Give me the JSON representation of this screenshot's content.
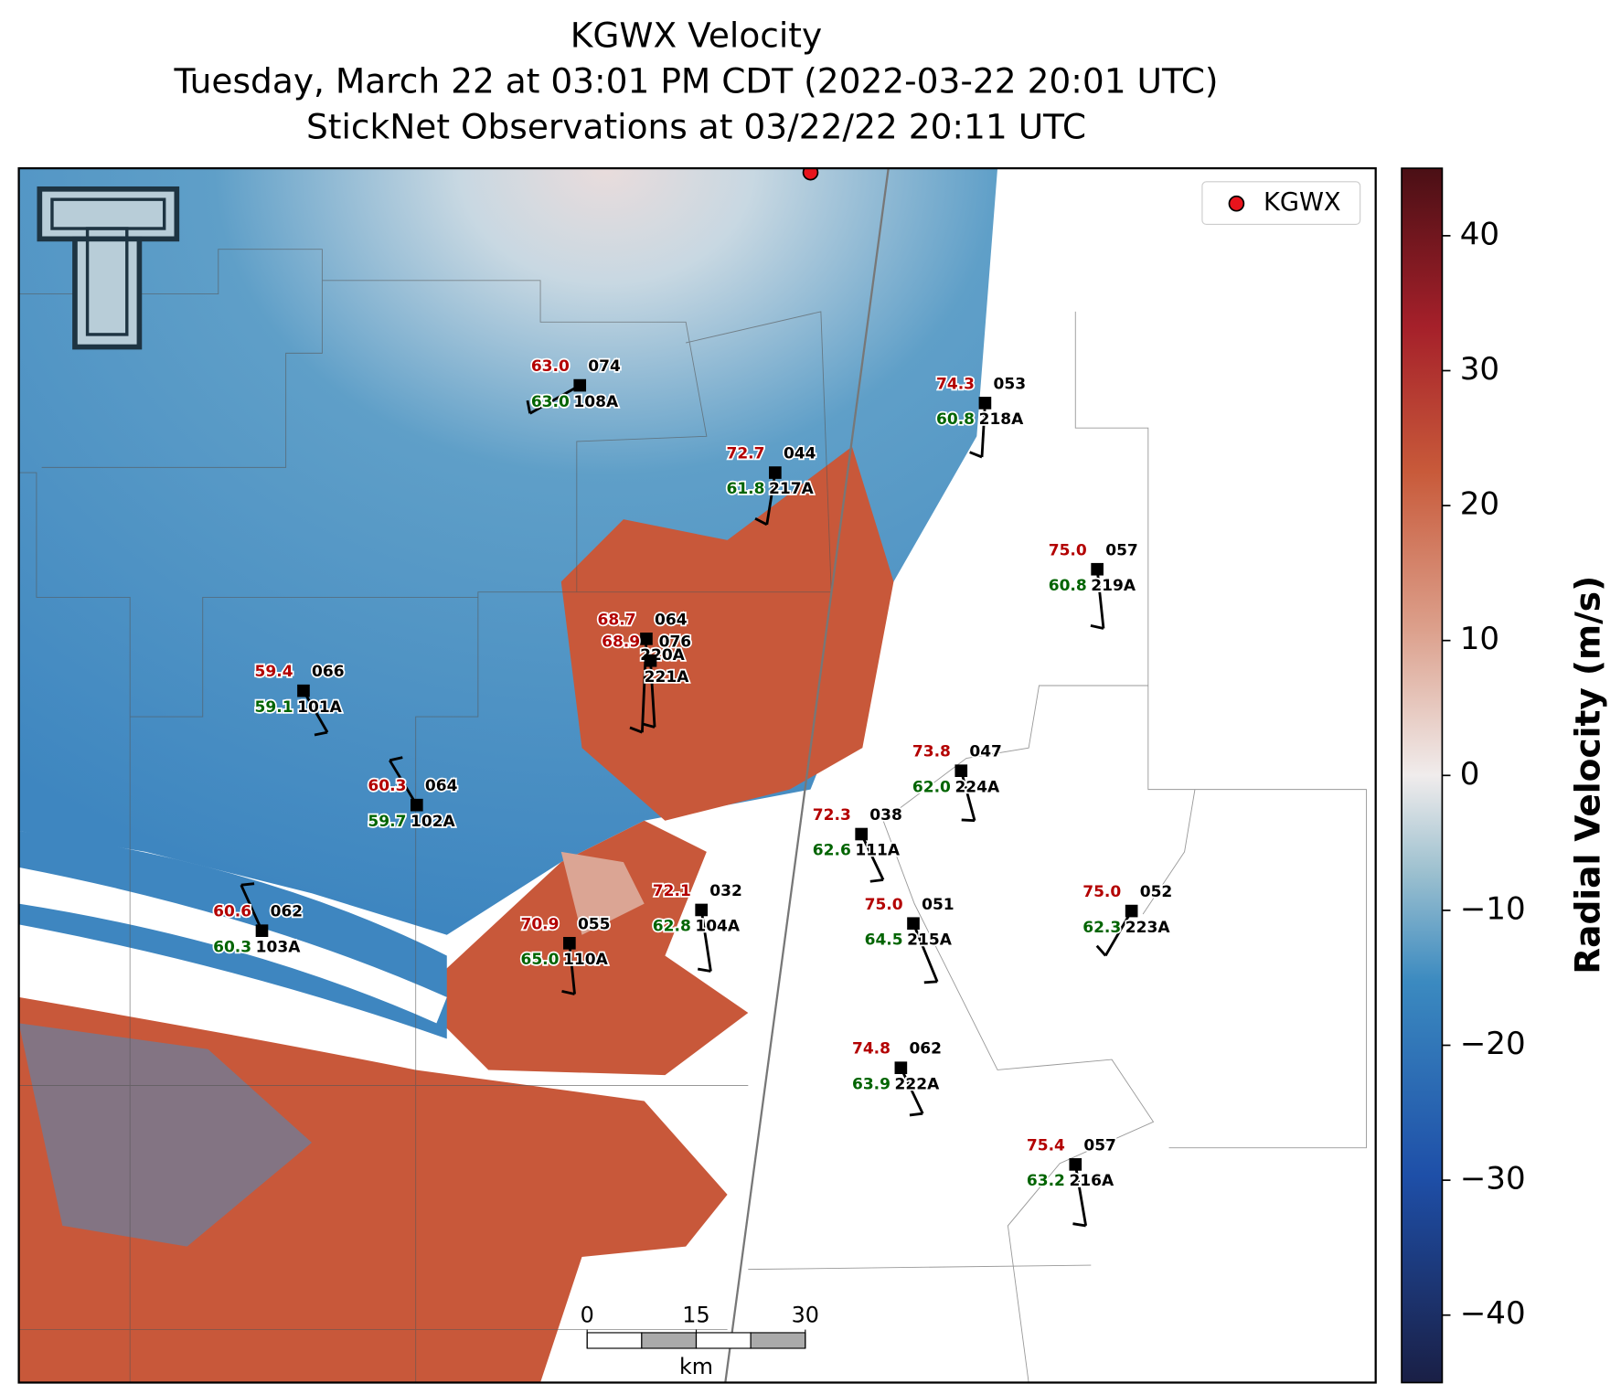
{
  "title": [
    "KGWX Velocity",
    "Tuesday, March 22 at 03:01 PM CDT (2022-03-22 20:01 UTC)",
    "StickNet Observations at 03/22/22 20:11 UTC"
  ],
  "legend": {
    "label": "KGWX",
    "color": "#e8141c"
  },
  "colorbar": {
    "label": "Radial Velocity (m/s)",
    "lim": [
      -45,
      45
    ],
    "ticks": [
      {
        "value": -40,
        "label": "−40"
      },
      {
        "value": -30,
        "label": "−30"
      },
      {
        "value": -20,
        "label": "−20"
      },
      {
        "value": -10,
        "label": "−10"
      },
      0,
      10,
      20,
      30,
      40
    ]
  },
  "scalebar": {
    "ticks": [
      0,
      15,
      30
    ],
    "unit": "km"
  },
  "stations": [
    {
      "t": "63.0",
      "dir": "074",
      "d": "63.0",
      "id": "108A"
    },
    {
      "t": "72.7",
      "dir": "044",
      "d": "61.8",
      "id": "217A"
    },
    {
      "t": "74.3",
      "dir": "053",
      "d": "60.8",
      "id": "218A"
    },
    {
      "t": "75.0",
      "dir": "057",
      "d": "60.8",
      "id": "219A"
    },
    {
      "t": "59.4",
      "dir": "066",
      "d": "59.1",
      "id": "101A"
    },
    {
      "t": "60.3",
      "dir": "064",
      "d": "59.7",
      "id": "102A"
    },
    {
      "t": "60.6",
      "dir": "062",
      "d": "60.3",
      "id": "103A"
    },
    {
      "t": "70.9",
      "dir": "055",
      "d": "65.0",
      "id": "110A"
    },
    {
      "t": "72.1",
      "dir": "032",
      "d": "62.8",
      "id": "104A"
    },
    {
      "t": "72.3",
      "dir": "038",
      "d": "62.6",
      "id": "111A"
    },
    {
      "t": "73.8",
      "dir": "047",
      "d": "62.0",
      "id": "224A"
    },
    {
      "t": "75.0",
      "dir": "051",
      "d": "64.5",
      "id": "215A"
    },
    {
      "t": "75.0",
      "dir": "052",
      "d": "62.3",
      "id": "223A"
    },
    {
      "t": "74.8",
      "dir": "062",
      "d": "63.9",
      "id": "222A"
    },
    {
      "t": "75.4",
      "dir": "057",
      "d": "63.2",
      "id": "216A"
    },
    {
      "t": "68.7",
      "dir": "064",
      "id": "220A"
    },
    {
      "t": "68.9",
      "dir": "076",
      "id": "221A"
    }
  ]
}
